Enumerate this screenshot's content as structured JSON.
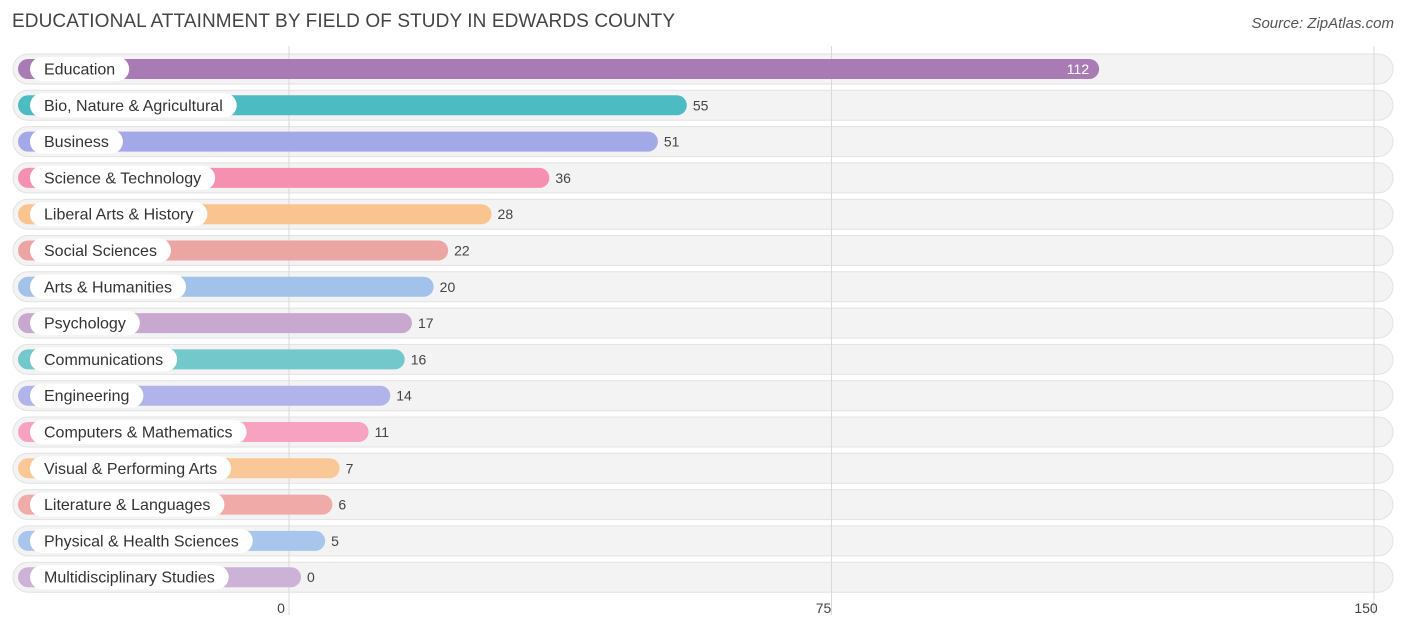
{
  "chart_data": {
    "type": "bar",
    "orientation": "horizontal",
    "title": "EDUCATIONAL ATTAINMENT BY FIELD OF STUDY IN EDWARDS COUNTY",
    "source": "Source: ZipAtlas.com",
    "xlim": [
      0,
      150
    ],
    "ticks": [
      0,
      75,
      150
    ],
    "grid": true,
    "categories": [
      "Education",
      "Bio, Nature & Agricultural",
      "Business",
      "Science & Technology",
      "Liberal Arts & History",
      "Social Sciences",
      "Arts & Humanities",
      "Psychology",
      "Communications",
      "Engineering",
      "Computers & Mathematics",
      "Visual & Performing Arts",
      "Literature & Languages",
      "Physical & Health Sciences",
      "Multidisciplinary Studies"
    ],
    "values": [
      112,
      55,
      51,
      36,
      28,
      22,
      20,
      17,
      16,
      14,
      11,
      7,
      6,
      5,
      0
    ],
    "colors": [
      "#a87bb5",
      "#4dbcc2",
      "#a3a8e6",
      "#f590b0",
      "#f9c490",
      "#eba6a4",
      "#a2c2ea",
      "#c9a8d0",
      "#73c8cc",
      "#b0b4ea",
      "#f6a2c0",
      "#f9c896",
      "#f0aaa8",
      "#a8c6ec",
      "#ccb2d6"
    ]
  }
}
